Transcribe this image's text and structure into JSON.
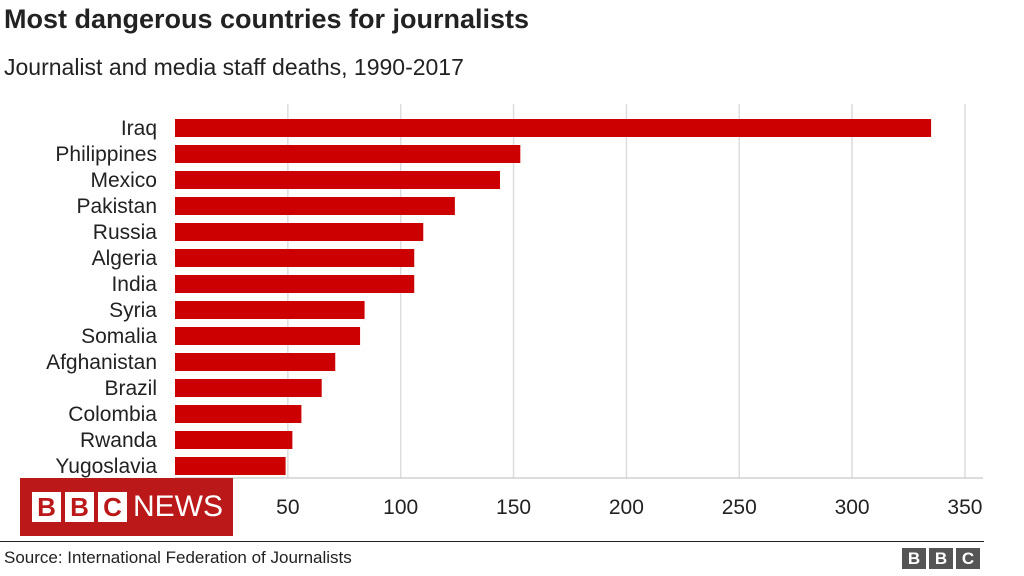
{
  "chart_data": {
    "type": "bar",
    "orientation": "horizontal",
    "title": "Most dangerous countries for journalists",
    "subtitle": "Journalist and media staff deaths, 1990-2017",
    "categories": [
      "Iraq",
      "Philippines",
      "Mexico",
      "Pakistan",
      "Russia",
      "Algeria",
      "India",
      "Syria",
      "Somalia",
      "Afghanistan",
      "Brazil",
      "Colombia",
      "Rwanda",
      "Yugoslavia"
    ],
    "values": [
      335,
      153,
      144,
      124,
      110,
      106,
      106,
      84,
      82,
      71,
      65,
      56,
      52,
      49
    ],
    "xlim": [
      0,
      360
    ],
    "xticks": [
      50,
      100,
      150,
      200,
      250,
      300,
      350
    ],
    "grid": true,
    "bar_color": "#cc0000",
    "source": "Source: International Federation of Journalists"
  },
  "branding": {
    "overlay_letters": [
      "B",
      "B",
      "C"
    ],
    "overlay_word": "NEWS",
    "overlay_color": "#bb1919",
    "footer_letters": [
      "B",
      "B",
      "C"
    ]
  }
}
